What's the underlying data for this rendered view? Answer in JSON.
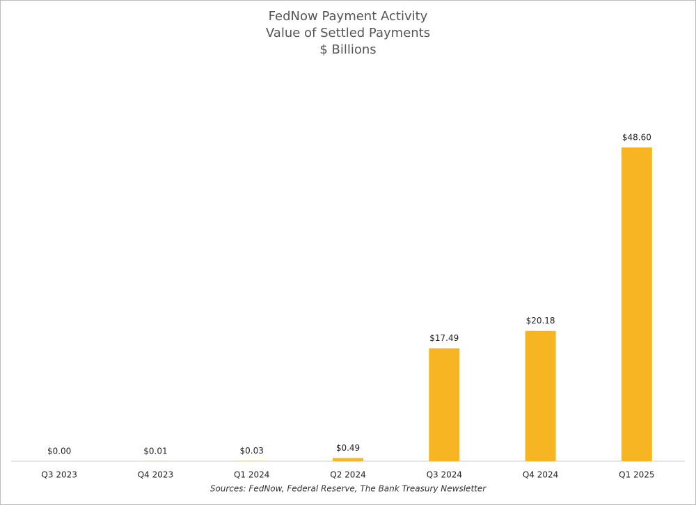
{
  "chart_data": {
    "type": "bar",
    "title_lines": [
      "FedNow Payment Activity",
      "Value of Settled Payments",
      "$ Billions"
    ],
    "categories": [
      "Q3 2023",
      "Q4 2023",
      "Q1 2024",
      "Q2 2024",
      "Q3 2024",
      "Q4 2024",
      "Q1 2025"
    ],
    "values": [
      0,
      0.01,
      0.03,
      0.49,
      17.49,
      20.18,
      48.6
    ],
    "value_labels": [
      "$0.00",
      "$0.01",
      "$0.03",
      "$0.49",
      "$17.49",
      "$20.18",
      "$48.60"
    ],
    "color": "#f7b524",
    "source": "Sources: FedNow, Federal Reserve, The Bank Treasury Newsletter"
  }
}
